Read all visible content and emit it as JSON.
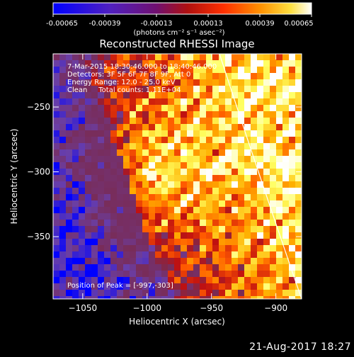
{
  "colorbar": {
    "ticks": [
      "-0.00065",
      "-0.00039",
      "-0.00013",
      "0.00013",
      "0.00039",
      "0.00065"
    ],
    "unit_label": "(photons cm⁻² s⁻¹ asec⁻²)"
  },
  "chart_data": {
    "type": "heatmap",
    "title": "Reconstructed RHESSI Image",
    "xlabel": "Heliocentric X (arcsec)",
    "ylabel": "Heliocentric Y (arcsec)",
    "xlim": [
      -1073,
      -880
    ],
    "ylim": [
      -398,
      -209
    ],
    "x_ticks": [
      "-1050",
      "-1000",
      "-950",
      "-900"
    ],
    "y_ticks": [
      "-250",
      "-300",
      "-350"
    ],
    "color_scale": {
      "min": -0.00065,
      "max": 0.00065,
      "colormap": "blue-purple-red-yellow-white",
      "colors": [
        "#0000ff",
        "#6a3fa8",
        "#7a2a50",
        "#c01010",
        "#ff5a00",
        "#ffb000",
        "#ffff60",
        "#ffffff"
      ]
    },
    "annotations": {
      "time": "7-Mar-2015 18:30:46.000 to 18:40:46.000",
      "detectors": "Detectors: 3F 5F 6F 7F 8F 9F, Att 0",
      "energy": "Energy Range: 12.0 - 25.0 keV",
      "clean": "Clean     Total counts: 1.11E+04",
      "peak": "Position of Peak = [-997,-303]"
    },
    "peak_position": [
      -997,
      -303
    ],
    "peak_value": 0.00065,
    "limb": {
      "visible": true,
      "color": "#ffffff"
    }
  },
  "footer": {
    "timestamp": "21-Aug-2017 18:27"
  }
}
